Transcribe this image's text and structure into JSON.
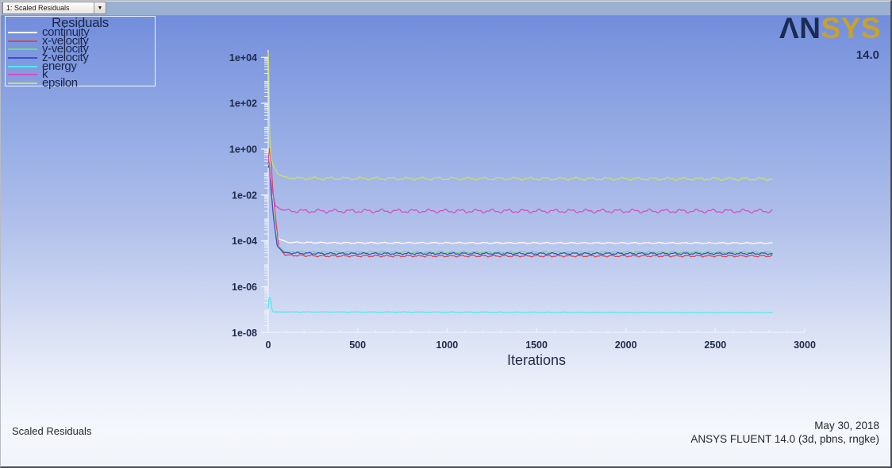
{
  "window": {
    "selector_label": "1: Scaled Residuals"
  },
  "logo": {
    "brand_an": "ΛN",
    "brand_sys": "SYS",
    "version": "14.0",
    "navy": "#1c2b52",
    "gold": "#c9a22b"
  },
  "legend": {
    "title": "Residuals"
  },
  "footer": {
    "left": "Scaled Residuals",
    "date": "May 30, 2018",
    "app": "ANSYS FLUENT 14.0 (3d, pbns, rngke)"
  },
  "chart_data": {
    "type": "line",
    "title": "Scaled Residuals",
    "xlabel": "Iterations",
    "x_range": [
      0,
      3000
    ],
    "x_ticks": [
      0,
      500,
      1000,
      1500,
      2000,
      2500,
      3000
    ],
    "x_minor_step": 100,
    "y_scale": "log10",
    "y_ticks": [
      "1e+04",
      "1e+02",
      "1e+00",
      "1e-02",
      "1e-04",
      "1e-06",
      "1e-08"
    ],
    "y_exp_range": [
      -8,
      4
    ],
    "iterations_shown": 2820,
    "grid": false,
    "legend_position": "top-left",
    "axis_color": "#eef3fc",
    "label_color": "#1f2a4a",
    "series": [
      {
        "name": "continuity",
        "color": "#ffffff",
        "steady_value": 8e-05,
        "points": [
          [
            1,
            0.9
          ],
          [
            5,
            0.55
          ],
          [
            12,
            0.12
          ],
          [
            25,
            0.006
          ],
          [
            40,
            0.00035
          ],
          [
            60,
            0.00012
          ],
          [
            110,
            8.6e-05
          ],
          [
            400,
            8.2e-05
          ],
          [
            2820,
            8e-05
          ]
        ],
        "wiggle_amp": 0.02,
        "wiggle_period": 70
      },
      {
        "name": "x-velocity",
        "color": "#d24a52",
        "steady_value": 2.2e-05,
        "points": [
          [
            1,
            0.22
          ],
          [
            5,
            0.95
          ],
          [
            9,
            1.15
          ],
          [
            14,
            0.4
          ],
          [
            25,
            0.02
          ],
          [
            40,
            0.0012
          ],
          [
            60,
            5e-05
          ],
          [
            95,
            2.4e-05
          ],
          [
            300,
            2.2e-05
          ],
          [
            2820,
            2.2e-05
          ]
        ],
        "wiggle_amp": 0.03,
        "wiggle_period": 60
      },
      {
        "name": "y-velocity",
        "color": "#6fd98a",
        "steady_value": 3.2e-05,
        "points": [
          [
            1,
            0.18
          ],
          [
            6,
            0.32
          ],
          [
            15,
            0.03
          ],
          [
            30,
            0.0015
          ],
          [
            50,
            7e-05
          ],
          [
            90,
            3.4e-05
          ],
          [
            300,
            3.2e-05
          ],
          [
            2820,
            3.2e-05
          ]
        ],
        "wiggle_amp": 0.03,
        "wiggle_period": 65
      },
      {
        "name": "z-velocity",
        "color": "#3a4fd2",
        "steady_value": 2.8e-05,
        "points": [
          [
            1,
            0.16
          ],
          [
            6,
            0.22
          ],
          [
            15,
            0.02
          ],
          [
            30,
            0.001
          ],
          [
            50,
            6e-05
          ],
          [
            90,
            3e-05
          ],
          [
            300,
            2.8e-05
          ],
          [
            2820,
            2.8e-05
          ]
        ],
        "wiggle_amp": 0.03,
        "wiggle_period": 62
      },
      {
        "name": "energy",
        "color": "#57e7ee",
        "steady_value": 7.5e-08,
        "points": [
          [
            1,
            1.2e-07
          ],
          [
            4,
            3.2e-07
          ],
          [
            8,
            3.6e-07
          ],
          [
            14,
            2.6e-07
          ],
          [
            20,
            1.1e-07
          ],
          [
            28,
            8e-08
          ],
          [
            2820,
            7.5e-08
          ]
        ],
        "wiggle_amp": 0.008,
        "wiggle_period": 90
      },
      {
        "name": "k",
        "color": "#d74ec2",
        "steady_value": 0.002,
        "points": [
          [
            1,
            0.5
          ],
          [
            4,
            0.34
          ],
          [
            9,
            0.1
          ],
          [
            20,
            0.02
          ],
          [
            40,
            0.0034
          ],
          [
            80,
            0.0022
          ],
          [
            160,
            0.002
          ],
          [
            2820,
            0.002
          ]
        ],
        "wiggle_amp": 0.06,
        "wiggle_period": 88
      },
      {
        "name": "epsilon",
        "color": "#cfdc6a",
        "steady_value": 0.05,
        "points": [
          [
            1,
            15000
          ],
          [
            2,
            9000
          ],
          [
            4,
            700
          ],
          [
            7,
            15
          ],
          [
            11,
            1.1
          ],
          [
            18,
            0.35
          ],
          [
            30,
            0.18
          ],
          [
            55,
            0.08
          ],
          [
            90,
            0.06
          ],
          [
            160,
            0.053
          ],
          [
            2820,
            0.05
          ]
        ],
        "wiggle_amp": 0.05,
        "wiggle_period": 86
      }
    ]
  }
}
